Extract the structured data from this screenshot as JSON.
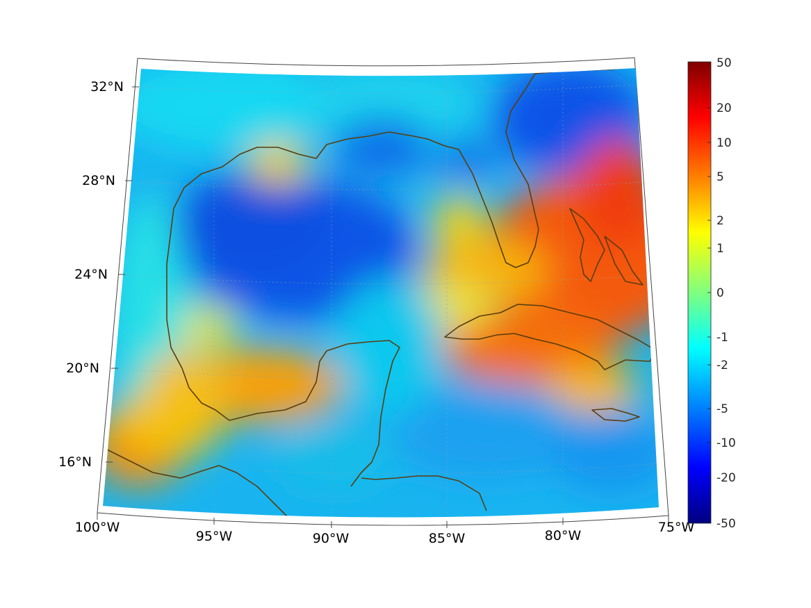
{
  "map": {
    "projection": "conic",
    "lat_labels": [
      "32°N",
      "28°N",
      "24°N",
      "20°N",
      "16°N"
    ],
    "lon_labels": [
      "100°W",
      "95°W",
      "90°W",
      "85°W",
      "80°W",
      "75°W"
    ],
    "extent": {
      "lon": [
        -100,
        -75
      ],
      "lat": [
        14,
        33
      ]
    },
    "grid": true,
    "coastline_color": "#5a3d0e",
    "regions": [
      "Gulf of Mexico",
      "Florida",
      "Cuba",
      "Yucatan",
      "Bahamas",
      "Jamaica",
      "Central America"
    ]
  },
  "colorbar": {
    "scale": "symmetric-log",
    "colormap": "jet",
    "tick_labels": [
      "50",
      "20",
      "10",
      "5",
      "2",
      "1",
      "0",
      "-1",
      "-2",
      "-5",
      "-10",
      "-20",
      "-50"
    ],
    "colors": [
      "#800000",
      "#ff0000",
      "#ff8000",
      "#ffff00",
      "#80ff80",
      "#00ffff",
      "#0080ff",
      "#0000ff",
      "#000080"
    ]
  }
}
